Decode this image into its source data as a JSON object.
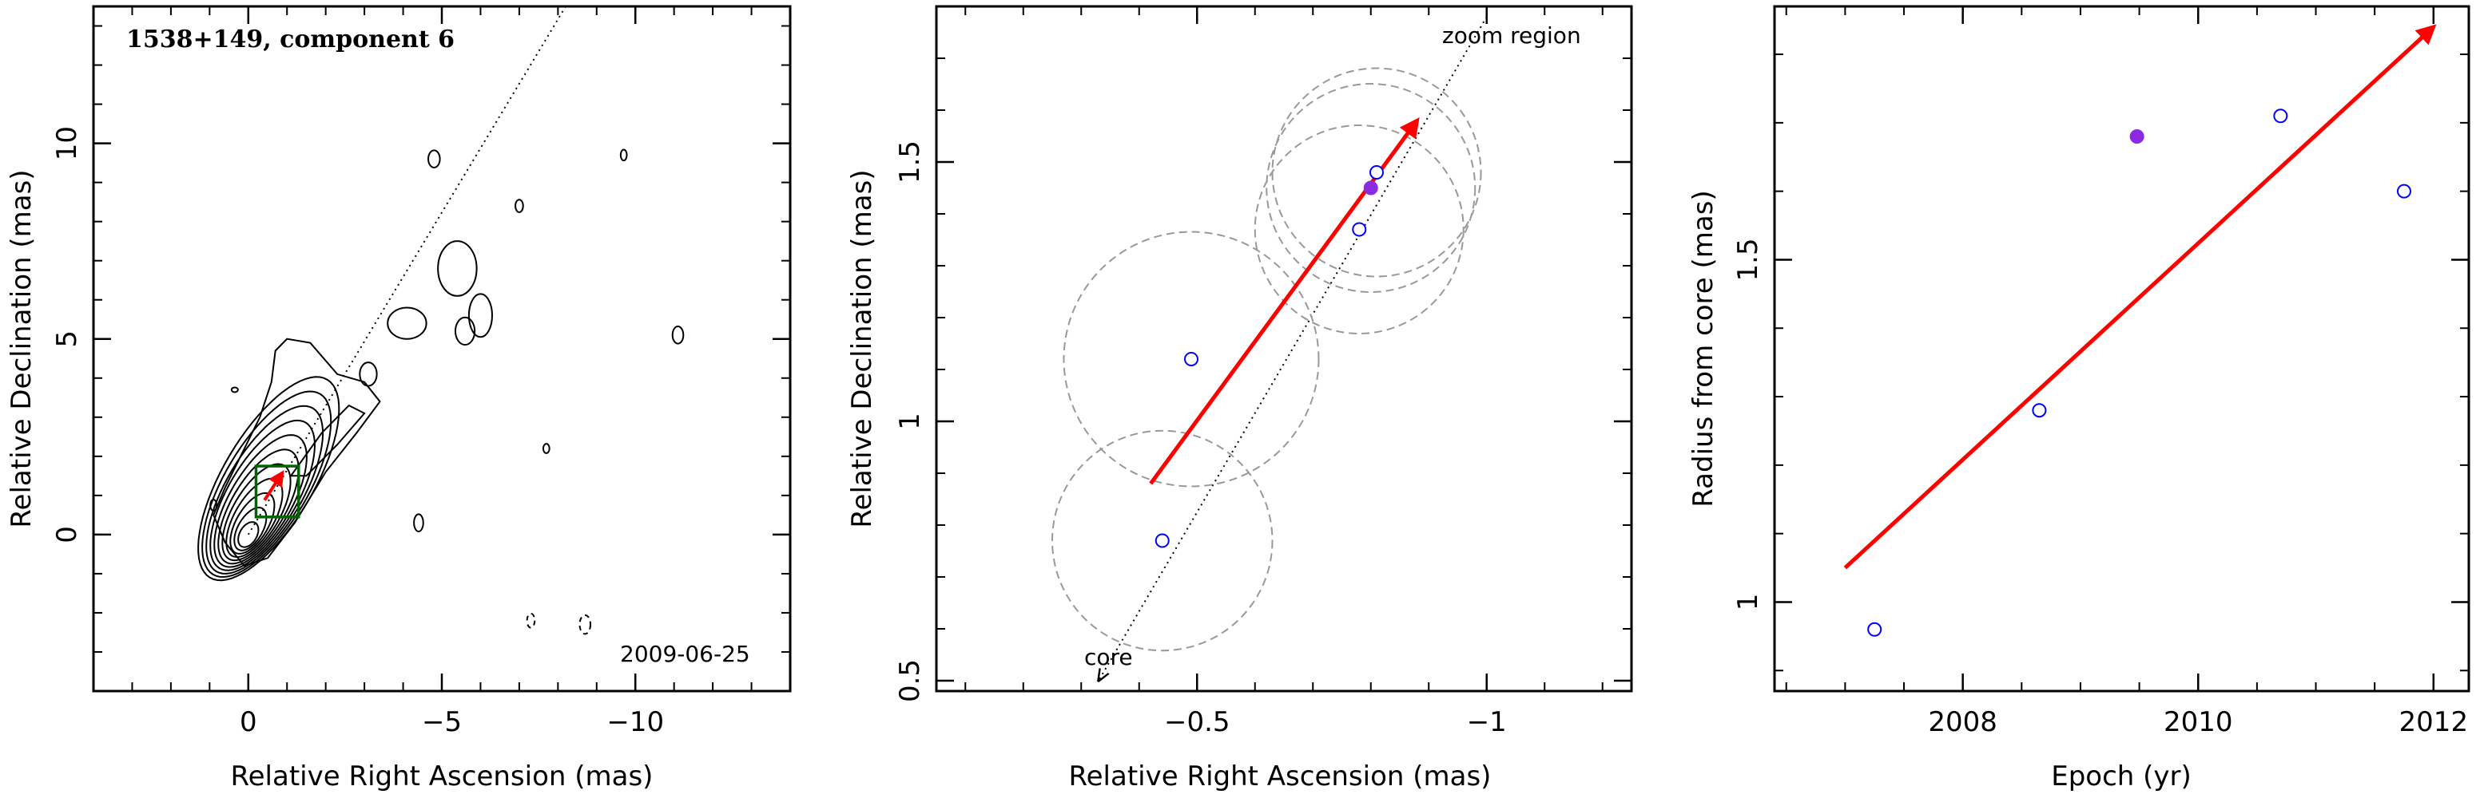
{
  "colors": {
    "arrow": "#ff0000",
    "open_marker": "#0000ff",
    "filled_marker": "#8a2be2",
    "box": "#006400",
    "circles": "#999999",
    "contours": "#000000"
  },
  "chart_data": [
    {
      "type": "contour",
      "panel": "map",
      "title": "1538+149, component 6",
      "date_label": "2009-06-25",
      "xlabel": "Relative Right Ascension (mas)",
      "ylabel": "Relative Declination (mas)",
      "xlim": [
        4,
        -14
      ],
      "ylim": [
        -4,
        13.5
      ],
      "x_ticks": [
        0,
        -5,
        -10
      ],
      "x_tick_labels": [
        "0",
        "−5",
        "−10"
      ],
      "y_ticks": [
        0,
        5,
        10
      ],
      "y_tick_labels": [
        "0",
        "5",
        "10"
      ],
      "jet_direction_line": {
        "from": [
          0.0,
          0.0
        ],
        "to": [
          -8.2,
          13.5
        ]
      },
      "zoom_box": {
        "x": [
          -0.2,
          -1.3
        ],
        "y": [
          0.45,
          1.75
        ]
      },
      "motion_arrow": {
        "from": [
          -0.42,
          0.88
        ],
        "to": [
          -0.88,
          1.58
        ]
      }
    },
    {
      "type": "scatter",
      "panel": "zoom",
      "title": "",
      "xlabel": "Relative Right Ascension (mas)",
      "ylabel": "Relative Declination (mas)",
      "xlim": [
        -0.05,
        -1.25
      ],
      "ylim": [
        0.48,
        1.8
      ],
      "x_ticks": [
        -0.5,
        -1
      ],
      "x_tick_labels": [
        "−0.5",
        "−1"
      ],
      "y_ticks": [
        0.5,
        1,
        1.5
      ],
      "y_tick_labels": [
        "0.5",
        "1",
        "1.5"
      ],
      "annotations": [
        "zoom region",
        "core"
      ],
      "points": [
        {
          "x": -0.44,
          "y": 0.77,
          "filled": false
        },
        {
          "x": -0.49,
          "y": 1.12,
          "filled": false
        },
        {
          "x": -0.78,
          "y": 1.37,
          "filled": false
        },
        {
          "x": -0.8,
          "y": 1.45,
          "filled": true
        },
        {
          "x": -0.81,
          "y": 1.48,
          "filled": false
        }
      ],
      "error_circle_radii": [
        0.19,
        0.22,
        0.18,
        0.18,
        0.18
      ],
      "motion_arrow": {
        "from": [
          -0.42,
          0.88
        ],
        "to": [
          -0.88,
          1.58
        ]
      },
      "direction_line": {
        "from": [
          -0.33,
          0.5
        ],
        "to": [
          -1.0,
          1.78
        ]
      }
    },
    {
      "type": "scatter",
      "panel": "radius",
      "title": "",
      "xlabel": "Epoch (yr)",
      "ylabel": "Radius from core (mas)",
      "xlim": [
        2006.4,
        2012.3
      ],
      "ylim": [
        0.87,
        1.87
      ],
      "x_ticks": [
        2008,
        2010,
        2012
      ],
      "x_tick_labels": [
        "2008",
        "2010",
        "2012"
      ],
      "y_ticks": [
        1,
        1.5
      ],
      "y_tick_labels": [
        "1",
        "1.5"
      ],
      "points": [
        {
          "x": 2007.25,
          "y": 0.96,
          "filled": false
        },
        {
          "x": 2008.65,
          "y": 1.28,
          "filled": false
        },
        {
          "x": 2009.48,
          "y": 1.68,
          "filled": true
        },
        {
          "x": 2010.7,
          "y": 1.71,
          "filled": false
        },
        {
          "x": 2011.75,
          "y": 1.6,
          "filled": false
        }
      ],
      "fit_arrow": {
        "from": [
          2007.0,
          1.05
        ],
        "to": [
          2012.0,
          1.84
        ]
      }
    }
  ]
}
